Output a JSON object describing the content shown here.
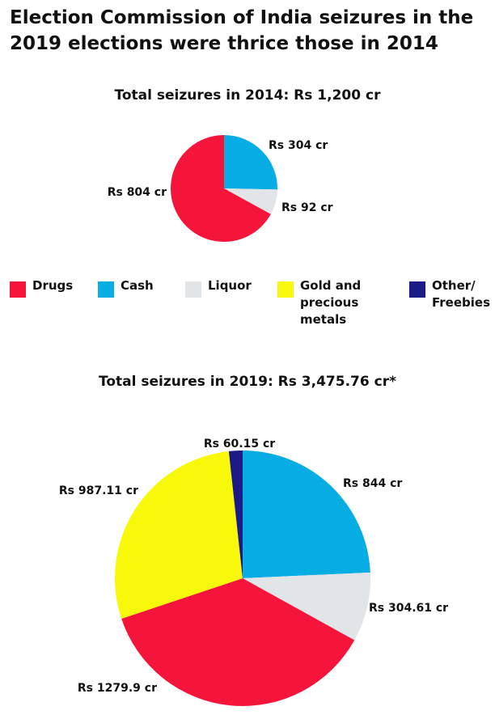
{
  "title": "Election Commission of India seizures in the 2019 elections were thrice those in 2014",
  "colors": {
    "Drugs": "#f5153b",
    "Cash": "#08ade3",
    "Liquor": "#e2e5e8",
    "Gold and precious metals": "#f8f80b",
    "Other/ Freebies": "#1c1a86"
  },
  "legend": [
    {
      "key": "Drugs",
      "label": "Drugs"
    },
    {
      "key": "Cash",
      "label": "Cash"
    },
    {
      "key": "Liquor",
      "label": "Liquor"
    },
    {
      "key": "Gold and precious metals",
      "label": "Gold and precious metals"
    },
    {
      "key": "Other/ Freebies",
      "label": "Other/ Freebies"
    }
  ],
  "chart_data": [
    {
      "type": "pie",
      "title": "Total seizures in 2014: Rs 1,200 cr",
      "slices": [
        {
          "category": "Cash",
          "value": 304,
          "label": "Rs 304 cr"
        },
        {
          "category": "Liquor",
          "value": 92,
          "label": "Rs 92 cr"
        },
        {
          "category": "Drugs",
          "value": 804,
          "label": "Rs 804 cr"
        }
      ]
    },
    {
      "type": "pie",
      "title": "Total seizures in 2019: Rs 3,475.76 cr*",
      "slices": [
        {
          "category": "Cash",
          "value": 844,
          "label": "Rs 844 cr"
        },
        {
          "category": "Liquor",
          "value": 304.61,
          "label": "Rs 304.61 cr"
        },
        {
          "category": "Drugs",
          "value": 1279.9,
          "label": "Rs 1279.9 cr"
        },
        {
          "category": "Gold and precious metals",
          "value": 987.11,
          "label": "Rs 987.11 cr"
        },
        {
          "category": "Other/ Freebies",
          "value": 60.15,
          "label": "Rs 60.15 cr"
        }
      ]
    }
  ]
}
